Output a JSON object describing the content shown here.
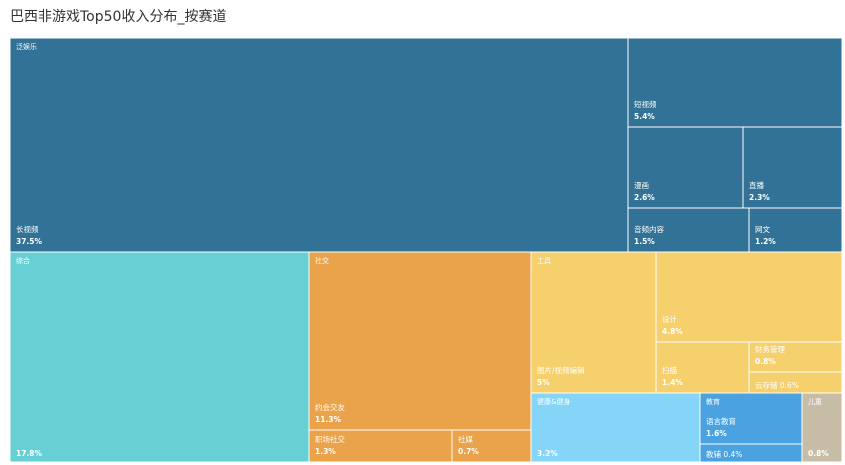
{
  "chart_data": {
    "type": "treemap",
    "title": "巴西非游戏Top50收入分布_按赛道",
    "groups": [
      {
        "name": "泛娱乐",
        "color": "#317296",
        "leaves": [
          {
            "name": "长视频",
            "value": "37.5%"
          },
          {
            "name": "短视频",
            "value": "5.4%"
          },
          {
            "name": "漫画",
            "value": "2.6%"
          },
          {
            "name": "直播",
            "value": "2.3%"
          },
          {
            "name": "音频内容",
            "value": "1.5%"
          },
          {
            "name": "网文",
            "value": "1.2%"
          }
        ]
      },
      {
        "name": "综合",
        "color": "#67d0d4",
        "leaves": [
          {
            "name": "",
            "value": "17.8%"
          }
        ]
      },
      {
        "name": "社交",
        "color": "#eaa34b",
        "leaves": [
          {
            "name": "约会交友",
            "value": "11.3%"
          },
          {
            "name": "职场社交",
            "value": "1.3%"
          },
          {
            "name": "社媒",
            "value": "0.7%"
          }
        ]
      },
      {
        "name": "工具",
        "color": "#f5d06c",
        "leaves": [
          {
            "name": "图片/视频编辑",
            "value": "5%"
          },
          {
            "name": "设计",
            "value": "4.8%"
          },
          {
            "name": "扫描",
            "value": "1.4%"
          },
          {
            "name": "财务管理",
            "value": "0.8%"
          },
          {
            "name": "云存储",
            "value": "0.6%"
          }
        ]
      },
      {
        "name": "健康&健身",
        "color": "#84d5f7",
        "leaves": [
          {
            "name": "",
            "value": "3.2%"
          }
        ]
      },
      {
        "name": "教育",
        "color": "#4aa2e1",
        "leaves": [
          {
            "name": "语言教育",
            "value": "1.6%"
          },
          {
            "name": "教辅",
            "value": "0.4%"
          }
        ]
      },
      {
        "name": "儿童",
        "color": "#c7bda7",
        "leaves": [
          {
            "name": "",
            "value": "0.8%"
          }
        ]
      }
    ]
  }
}
